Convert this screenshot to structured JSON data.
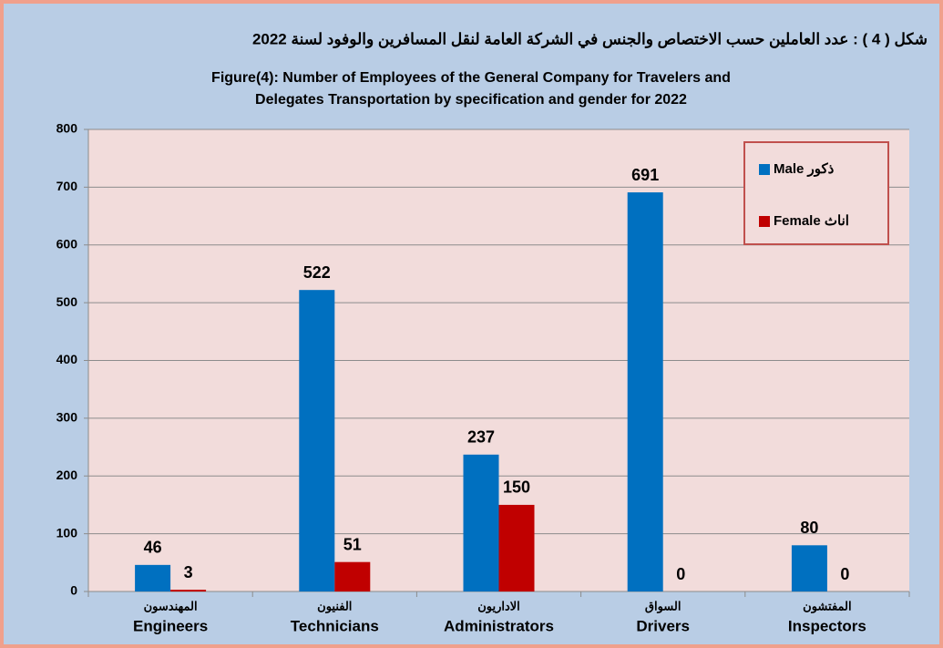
{
  "chart_data": {
    "type": "bar",
    "title": "شكل ( 4 ) : عدد العاملين حسب الاختصاص والجنس في الشركة العامة لنقل المسافرين والوفود لسنة 2022",
    "subtitle": [
      "Figure(4): Number of Employees of the General Company for Travelers and",
      "Delegates Transportation by specification and gender for 2022"
    ],
    "categories": [
      "Engineers",
      "Technicians",
      "Administrators",
      "Drivers",
      "Inspectors"
    ],
    "categories_ar": [
      "المهندسون",
      "الفنيون",
      "الاداريون",
      "السواق",
      "المفتشون"
    ],
    "series": [
      {
        "name": "Male ذكور",
        "color": "#0070c0",
        "values": [
          46,
          522,
          237,
          691,
          80
        ]
      },
      {
        "name": "Female اناث",
        "color": "#c00000",
        "values": [
          3,
          51,
          150,
          0,
          0
        ]
      }
    ],
    "ylim": [
      0,
      800
    ],
    "yticks": [
      0,
      100,
      200,
      300,
      400,
      500,
      600,
      700,
      800
    ],
    "grid": true,
    "legend": "upper right"
  }
}
